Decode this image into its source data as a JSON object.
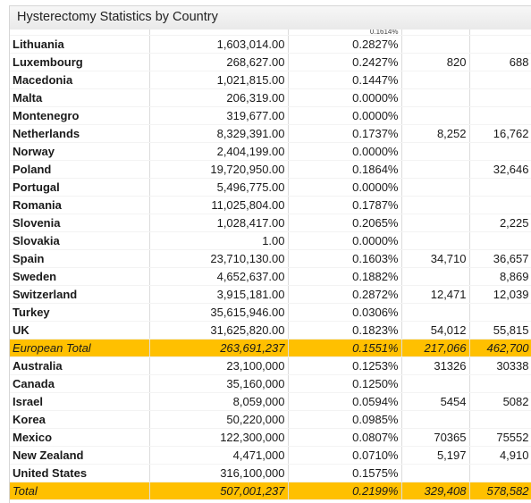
{
  "window": {
    "title": "Hysterectomy Statistics by Country"
  },
  "table": {
    "partial_row": {
      "c2": "0.1614%"
    },
    "rows": [
      {
        "name": "Lithuania",
        "population": "1,603,014.00",
        "rate": "0.2827%",
        "v1": "",
        "v2": ""
      },
      {
        "name": "Luxembourg",
        "population": "268,627.00",
        "rate": "0.2427%",
        "v1": "820",
        "v2": "688"
      },
      {
        "name": "Macedonia",
        "population": "1,021,815.00",
        "rate": "0.1447%",
        "v1": "",
        "v2": ""
      },
      {
        "name": "Malta",
        "population": "206,319.00",
        "rate": "0.0000%",
        "v1": "",
        "v2": ""
      },
      {
        "name": "Montenegro",
        "population": "319,677.00",
        "rate": "0.0000%",
        "v1": "",
        "v2": ""
      },
      {
        "name": "Netherlands",
        "population": "8,329,391.00",
        "rate": "0.1737%",
        "v1": "8,252",
        "v2": "16,762"
      },
      {
        "name": "Norway",
        "population": "2,404,199.00",
        "rate": "0.0000%",
        "v1": "",
        "v2": ""
      },
      {
        "name": "Poland",
        "population": "19,720,950.00",
        "rate": "0.1864%",
        "v1": "",
        "v2": "32,646"
      },
      {
        "name": "Portugal",
        "population": "5,496,775.00",
        "rate": "0.0000%",
        "v1": "",
        "v2": ""
      },
      {
        "name": "Romania",
        "population": "11,025,804.00",
        "rate": "0.1787%",
        "v1": "",
        "v2": ""
      },
      {
        "name": "Slovenia",
        "population": "1,028,417.00",
        "rate": "0.2065%",
        "v1": "",
        "v2": "2,225"
      },
      {
        "name": "Slovakia",
        "population": "1.00",
        "rate": "0.0000%",
        "v1": "",
        "v2": ""
      },
      {
        "name": "Spain",
        "population": "23,710,130.00",
        "rate": "0.1603%",
        "v1": "34,710",
        "v2": "36,657"
      },
      {
        "name": "Sweden",
        "population": "4,652,637.00",
        "rate": "0.1882%",
        "v1": "",
        "v2": "8,869"
      },
      {
        "name": "Switzerland",
        "population": "3,915,181.00",
        "rate": "0.2872%",
        "v1": "12,471",
        "v2": "12,039"
      },
      {
        "name": "Turkey",
        "population": "35,615,946.00",
        "rate": "0.0306%",
        "v1": "",
        "v2": ""
      },
      {
        "name": "UK",
        "population": "31,625,820.00",
        "rate": "0.1823%",
        "v1": "54,012",
        "v2": "55,815"
      },
      {
        "name": "European Total",
        "population": "263,691,237",
        "rate": "0.1551%",
        "v1": "217,066",
        "v2": "462,700",
        "total": true
      },
      {
        "name": "Australia",
        "population": "23,100,000",
        "rate": "0.1253%",
        "v1": "31326",
        "v2": "30338"
      },
      {
        "name": "Canada",
        "population": "35,160,000",
        "rate": "0.1250%",
        "v1": "",
        "v2": ""
      },
      {
        "name": "Israel",
        "population": "8,059,000",
        "rate": "0.0594%",
        "v1": "5454",
        "v2": "5082"
      },
      {
        "name": "Korea",
        "population": "50,220,000",
        "rate": "0.0985%",
        "v1": "",
        "v2": ""
      },
      {
        "name": "Mexico",
        "population": "122,300,000",
        "rate": "0.0807%",
        "v1": "70365",
        "v2": "75552"
      },
      {
        "name": "New Zealand",
        "population": "4,471,000",
        "rate": "0.0710%",
        "v1": "5,197",
        "v2": "4,910"
      },
      {
        "name": "United States",
        "population": "316,100,000",
        "rate": "0.1575%",
        "v1": "",
        "v2": ""
      },
      {
        "name": "Total",
        "population": "507,001,237",
        "rate": "0.2199%",
        "v1": "329,408",
        "v2": "578,582",
        "total": true
      }
    ]
  },
  "colors": {
    "total_highlight": "#ffc000",
    "grid_line": "#dcdcdc"
  }
}
